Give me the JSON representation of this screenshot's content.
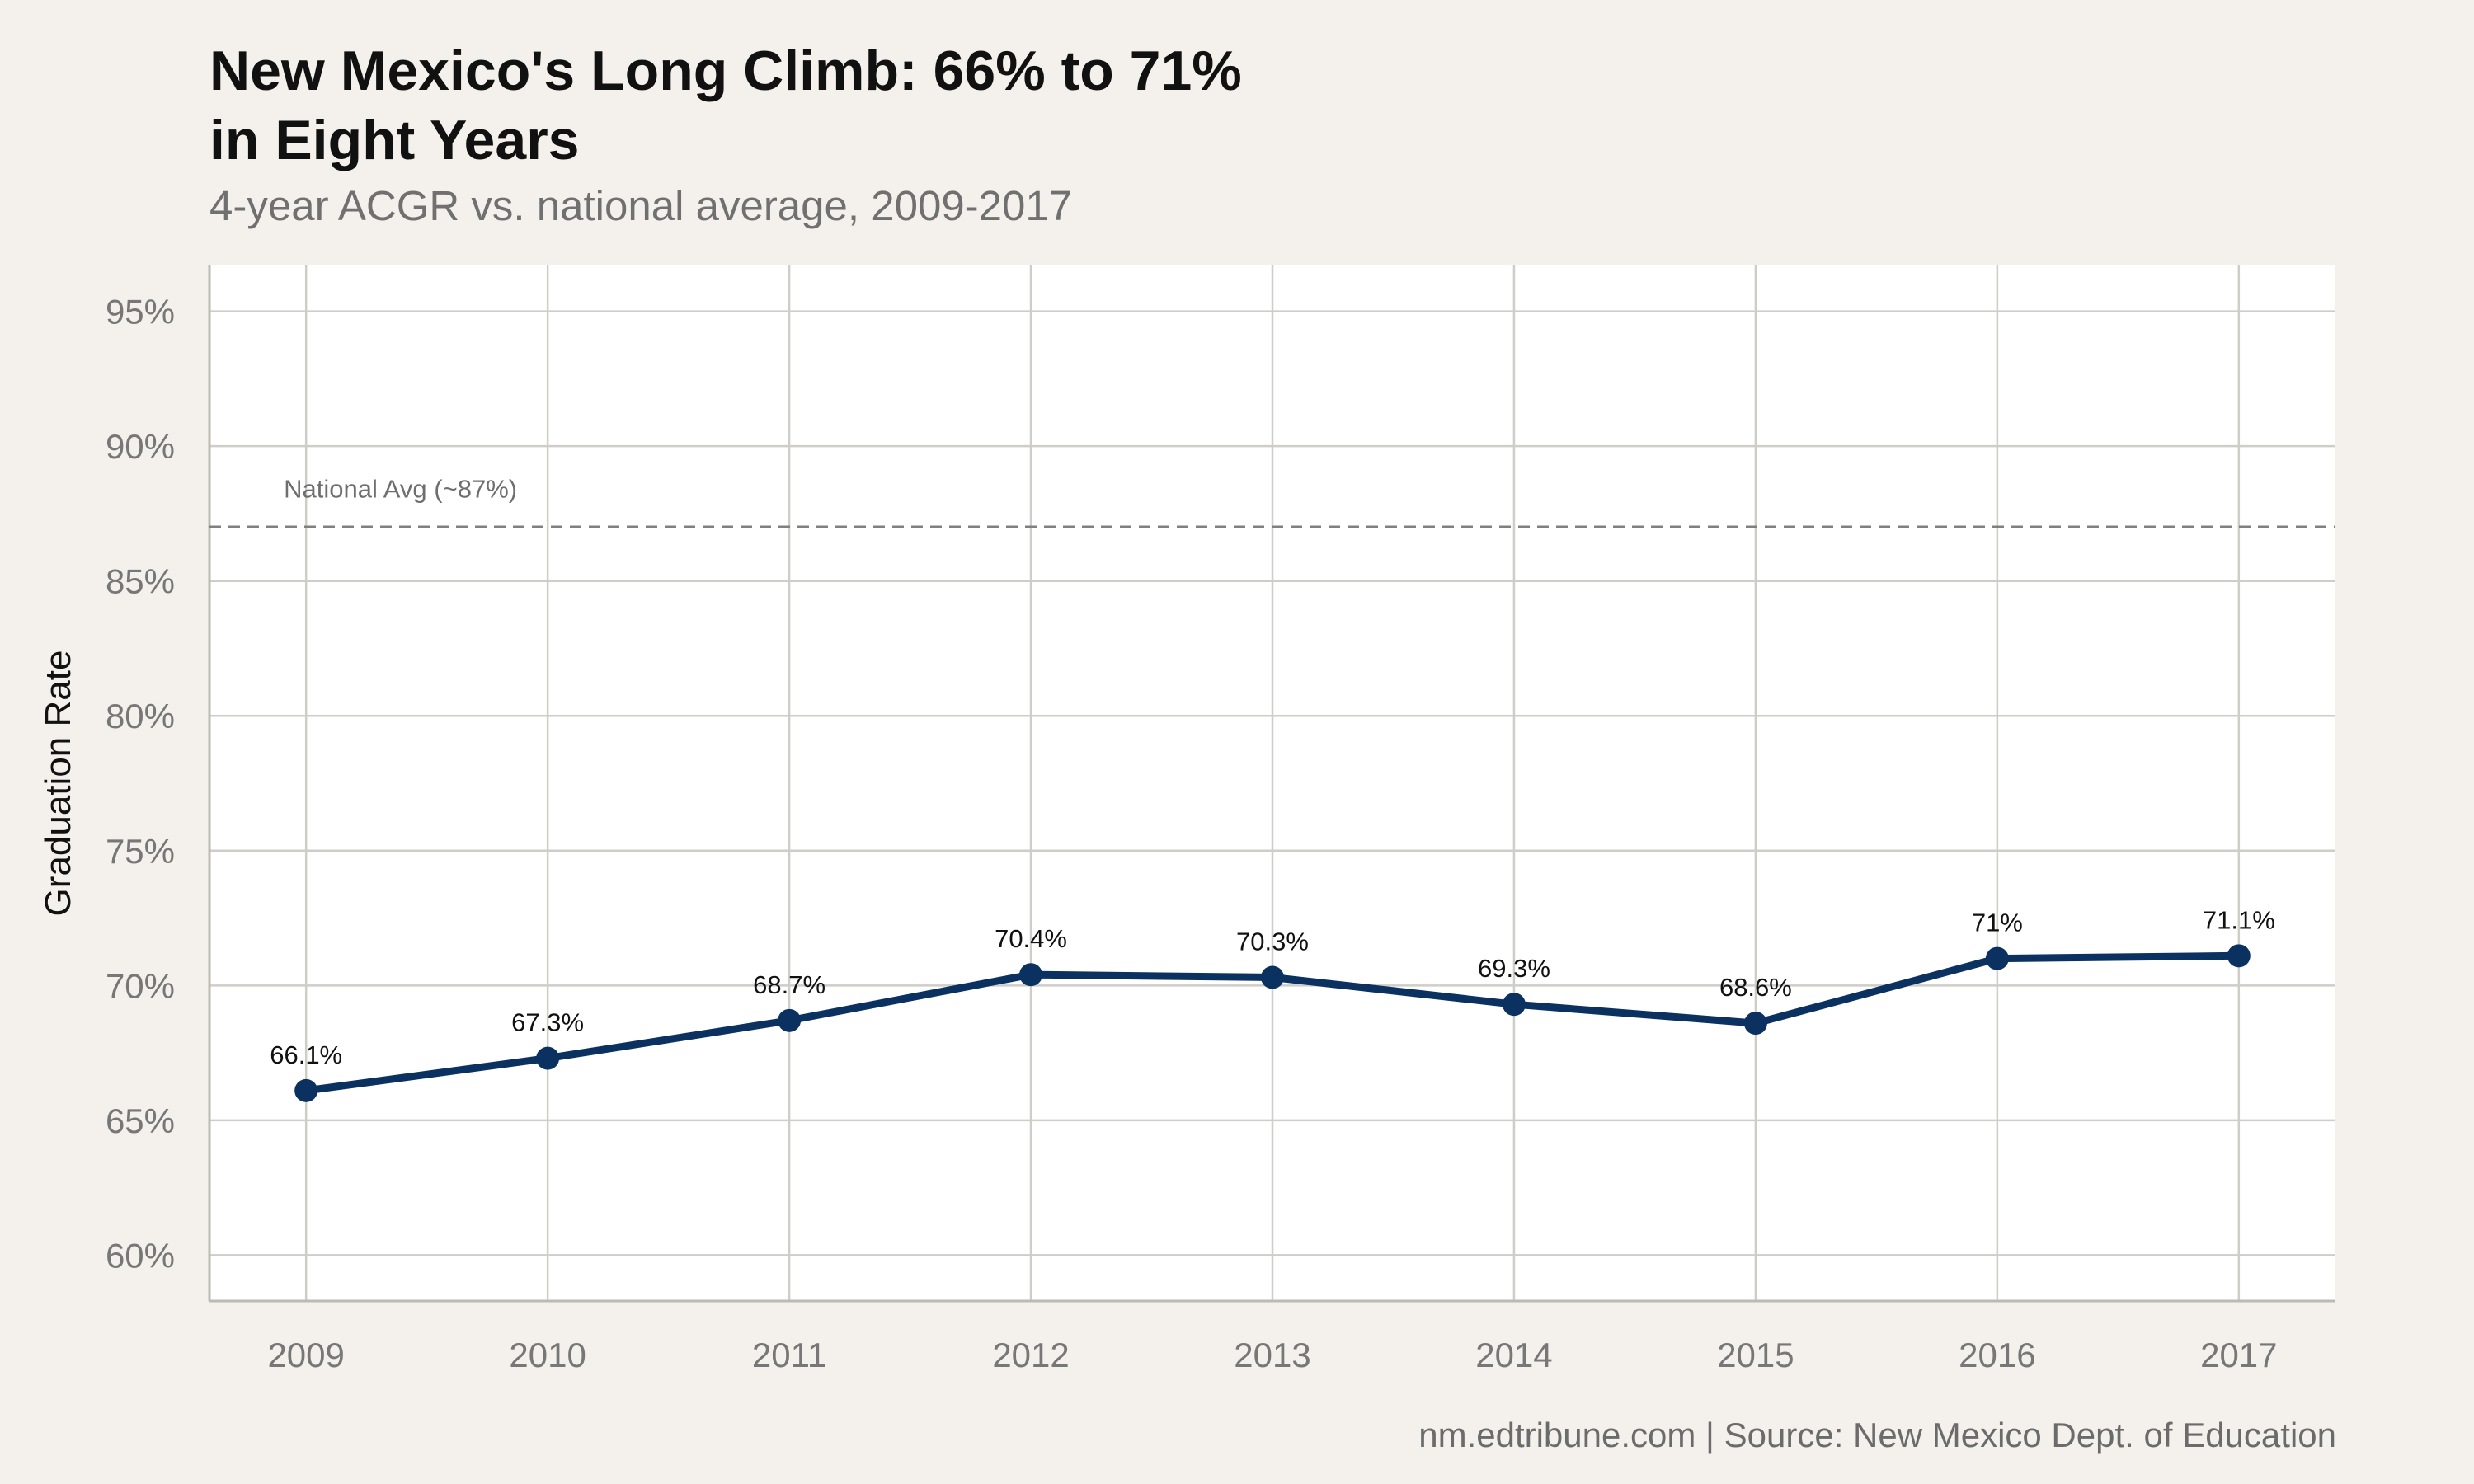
{
  "header": {
    "title_line1": "New Mexico's Long Climb: 66% to 71%",
    "title_line2": "in Eight Years",
    "subtitle": "4-year ACGR vs. national average, 2009-2017"
  },
  "footer": {
    "caption": "nm.edtribune.com | Source: New Mexico Dept. of Education"
  },
  "chart_data": {
    "type": "line",
    "title": "New Mexico's Long Climb: 66% to 71% in Eight Years",
    "subtitle": "4-year ACGR vs. national average, 2009-2017",
    "xlabel": "",
    "ylabel": "Graduation Rate",
    "x": [
      2009,
      2010,
      2011,
      2012,
      2013,
      2014,
      2015,
      2016,
      2017
    ],
    "y": [
      66.1,
      67.3,
      68.7,
      70.4,
      70.3,
      69.3,
      68.6,
      71.0,
      71.1
    ],
    "data_labels": [
      "66.1%",
      "67.3%",
      "68.7%",
      "70.4%",
      "70.3%",
      "69.3%",
      "68.6%",
      "71%",
      "71.1%"
    ],
    "x_ticks": [
      "2009",
      "2010",
      "2011",
      "2012",
      "2013",
      "2014",
      "2015",
      "2016",
      "2017"
    ],
    "y_ticks": [
      60,
      65,
      70,
      75,
      80,
      85,
      90,
      95
    ],
    "y_tick_labels": [
      "60%",
      "65%",
      "70%",
      "75%",
      "80%",
      "85%",
      "90%",
      "95%"
    ],
    "xlim": [
      2008.6,
      2017.4
    ],
    "ylim": [
      58.3,
      96.7
    ],
    "reference_line": {
      "value": 87,
      "label": "National Avg (~87%)",
      "style": "dashed",
      "color": "#808080"
    },
    "grid": true,
    "legend": "none",
    "colors": {
      "series": "#0b3160",
      "background": "#f4f1ec",
      "panel": "#ffffff",
      "grid": "#cfcdc8"
    },
    "caption": "nm.edtribune.com | Source: New Mexico Dept. of Education"
  }
}
